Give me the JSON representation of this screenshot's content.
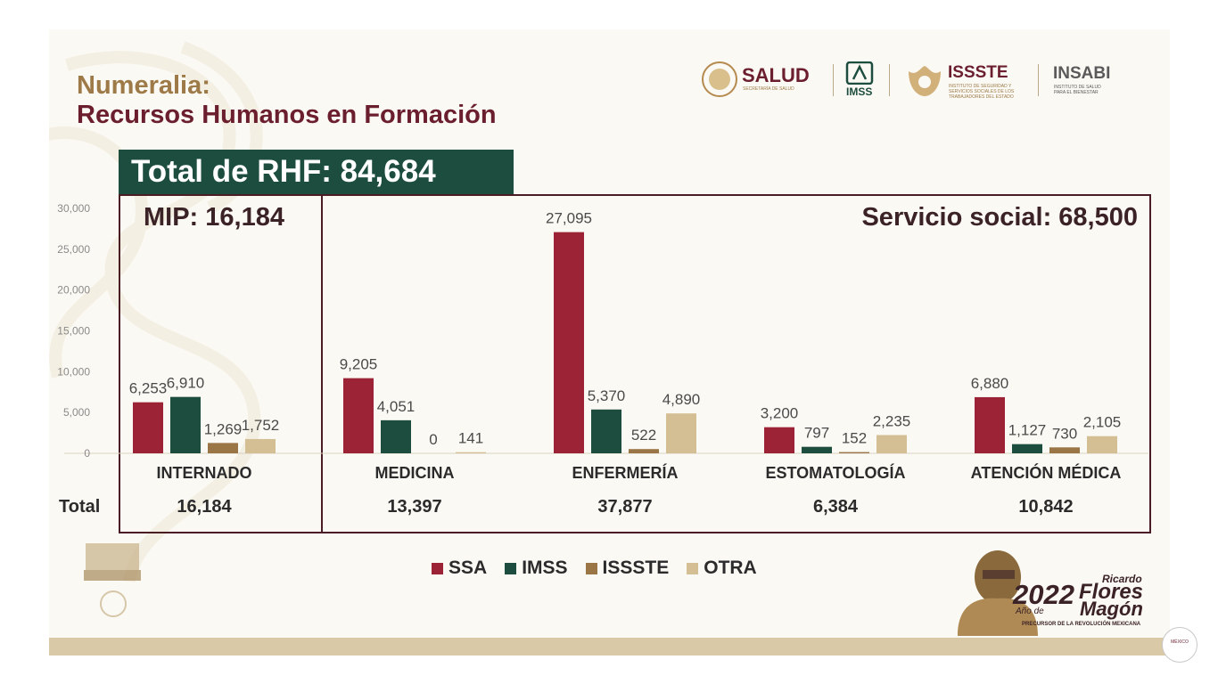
{
  "title": {
    "line1": "Numeralia:",
    "line2": "Recursos Humanos en Formación"
  },
  "logos": {
    "salud": "SALUD",
    "salud_sub": "SECRETARÍA DE SALUD",
    "imss": "IMSS",
    "issste": "ISSSTE",
    "issste_sub": "INSTITUTO DE SEGURIDAD Y SERVICIOS SOCIALES DE LOS TRABAJADORES DEL ESTADO",
    "insabi": "INSABI",
    "insabi_sub": "INSTITUTO DE SALUD PARA EL BIENESTAR"
  },
  "total_banner": "Total de RHF: 84,684",
  "mip_title": "MIP: 16,184",
  "ss_title": "Servicio social: 68,500",
  "total_row_label": "Total",
  "footer": {
    "year": "2022",
    "anio_de": "Año de",
    "ricardo": "Ricardo",
    "flores": "Flores",
    "magon": "Magón",
    "precursor": "PRECURSOR DE LA REVOLUCIÓN MEXICANA",
    "mexico": "MÉXICO"
  },
  "chart_data": {
    "type": "bar",
    "categories": [
      "INTERNADO",
      "MEDICINA",
      "ENFERMERÍA",
      "ESTOMATOLOGÍA",
      "ATENCIÓN MÉDICA"
    ],
    "category_totals": [
      "16,184",
      "13,397",
      "37,877",
      "6,384",
      "10,842"
    ],
    "series": [
      {
        "name": "SSA",
        "color": "#9b2335",
        "values": [
          6253,
          9205,
          27095,
          3200,
          6880
        ],
        "labels": [
          "6,253",
          "9,205",
          "27,095",
          "3,200",
          "6,880"
        ]
      },
      {
        "name": "IMSS",
        "color": "#1d4d3f",
        "values": [
          6910,
          4051,
          5370,
          797,
          1127
        ],
        "labels": [
          "6,910",
          "4,051",
          "5,370",
          "797",
          "1,127"
        ]
      },
      {
        "name": "ISSSTE",
        "color": "#9a7546",
        "values": [
          1269,
          0,
          522,
          152,
          730
        ],
        "labels": [
          "1,269",
          "0",
          "522",
          "152",
          "730"
        ]
      },
      {
        "name": "OTRA",
        "color": "#d4bf94",
        "values": [
          1752,
          141,
          4890,
          2235,
          2105
        ],
        "labels": [
          "1,752",
          "141",
          "4,890",
          "2,235",
          "2,105"
        ]
      }
    ],
    "yticks": [
      "0",
      "5,000",
      "10,000",
      "15,000",
      "20,000",
      "25,000",
      "30,000"
    ],
    "ylim": [
      0,
      30000
    ],
    "grid": false,
    "legend": "bottom-center"
  }
}
